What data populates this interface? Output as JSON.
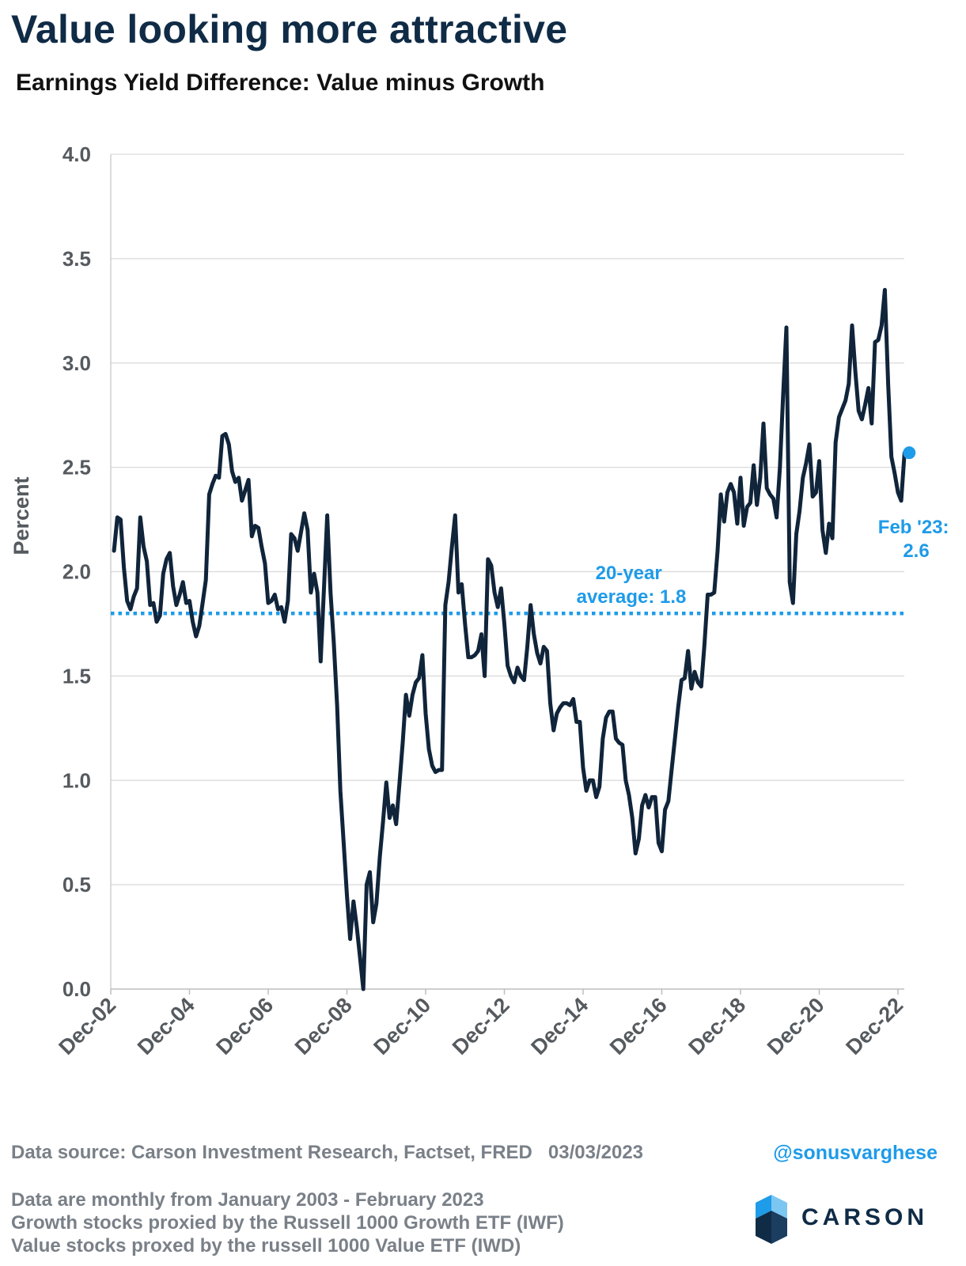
{
  "header": {
    "title": "Value looking more attractive",
    "subtitle": "Earnings Yield Difference: Value minus Growth"
  },
  "chart_data": {
    "type": "line",
    "ylabel": "Percent",
    "xlabel": "",
    "ylim": [
      0,
      4
    ],
    "yticks": [
      "0.0",
      "0.5",
      "1.0",
      "1.5",
      "2.0",
      "2.5",
      "3.0",
      "3.5",
      "4.0"
    ],
    "xticks": [
      "Dec-02",
      "Dec-04",
      "Dec-06",
      "Dec-08",
      "Dec-10",
      "Dec-12",
      "Dec-14",
      "Dec-16",
      "Dec-18",
      "Dec-20",
      "Dec-22"
    ],
    "grid": "horizontal",
    "series": [
      {
        "color": "#10243a",
        "x": [
          "2003-01",
          "2003-02",
          "2003-03",
          "2003-04",
          "2003-05",
          "2003-06",
          "2003-07",
          "2003-08",
          "2003-09",
          "2003-10",
          "2003-11",
          "2003-12",
          "2004-01",
          "2004-02",
          "2004-03",
          "2004-04",
          "2004-05",
          "2004-06",
          "2004-07",
          "2004-08",
          "2004-09",
          "2004-10",
          "2004-11",
          "2004-12",
          "2005-01",
          "2005-02",
          "2005-03",
          "2005-04",
          "2005-05",
          "2005-06",
          "2005-07",
          "2005-08",
          "2005-09",
          "2005-10",
          "2005-11",
          "2005-12",
          "2006-01",
          "2006-02",
          "2006-03",
          "2006-04",
          "2006-05",
          "2006-06",
          "2006-07",
          "2006-08",
          "2006-09",
          "2006-10",
          "2006-11",
          "2006-12",
          "2007-01",
          "2007-02",
          "2007-03",
          "2007-04",
          "2007-05",
          "2007-06",
          "2007-07",
          "2007-08",
          "2007-09",
          "2007-10",
          "2007-11",
          "2007-12",
          "2008-01",
          "2008-02",
          "2008-03",
          "2008-04",
          "2008-05",
          "2008-06",
          "2008-07",
          "2008-08",
          "2008-09",
          "2008-10",
          "2008-11",
          "2008-12",
          "2009-01",
          "2009-02",
          "2009-03",
          "2009-04",
          "2009-05",
          "2009-06",
          "2009-07",
          "2009-08",
          "2009-09",
          "2009-10",
          "2009-11",
          "2009-12",
          "2010-01",
          "2010-02",
          "2010-03",
          "2010-04",
          "2010-05",
          "2010-06",
          "2010-07",
          "2010-08",
          "2010-09",
          "2010-10",
          "2010-11",
          "2010-12",
          "2011-01",
          "2011-02",
          "2011-03",
          "2011-04",
          "2011-05",
          "2011-06",
          "2011-07",
          "2011-08",
          "2011-09",
          "2011-10",
          "2011-11",
          "2011-12",
          "2012-01",
          "2012-02",
          "2012-03",
          "2012-04",
          "2012-05",
          "2012-06",
          "2012-07",
          "2012-08",
          "2012-09",
          "2012-10",
          "2012-11",
          "2012-12",
          "2013-01",
          "2013-02",
          "2013-03",
          "2013-04",
          "2013-05",
          "2013-06",
          "2013-07",
          "2013-08",
          "2013-09",
          "2013-10",
          "2013-11",
          "2013-12",
          "2014-01",
          "2014-02",
          "2014-03",
          "2014-04",
          "2014-05",
          "2014-06",
          "2014-07",
          "2014-08",
          "2014-09",
          "2014-10",
          "2014-11",
          "2014-12",
          "2015-01",
          "2015-02",
          "2015-03",
          "2015-04",
          "2015-05",
          "2015-06",
          "2015-07",
          "2015-08",
          "2015-09",
          "2015-10",
          "2015-11",
          "2015-12",
          "2016-01",
          "2016-02",
          "2016-03",
          "2016-04",
          "2016-05",
          "2016-06",
          "2016-07",
          "2016-08",
          "2016-09",
          "2016-10",
          "2016-11",
          "2016-12",
          "2017-01",
          "2017-02",
          "2017-03",
          "2017-04",
          "2017-05",
          "2017-06",
          "2017-07",
          "2017-08",
          "2017-09",
          "2017-10",
          "2017-11",
          "2017-12",
          "2018-01",
          "2018-02",
          "2018-03",
          "2018-04",
          "2018-05",
          "2018-06",
          "2018-07",
          "2018-08",
          "2018-09",
          "2018-10",
          "2018-11",
          "2018-12",
          "2019-01",
          "2019-02",
          "2019-03",
          "2019-04",
          "2019-05",
          "2019-06",
          "2019-07",
          "2019-08",
          "2019-09",
          "2019-10",
          "2019-11",
          "2019-12",
          "2020-01",
          "2020-02",
          "2020-03",
          "2020-04",
          "2020-05",
          "2020-06",
          "2020-07",
          "2020-08",
          "2020-09",
          "2020-10",
          "2020-11",
          "2020-12",
          "2021-01",
          "2021-02",
          "2021-03",
          "2021-04",
          "2021-05",
          "2021-06",
          "2021-07",
          "2021-08",
          "2021-09",
          "2021-10",
          "2021-11",
          "2021-12",
          "2022-01",
          "2022-02",
          "2022-03",
          "2022-04",
          "2022-05",
          "2022-06",
          "2022-07",
          "2022-08",
          "2022-09",
          "2022-10",
          "2022-11",
          "2022-12",
          "2023-01",
          "2023-02"
        ],
        "values": [
          2.1,
          2.26,
          2.25,
          2.02,
          1.86,
          1.82,
          1.88,
          1.92,
          2.26,
          2.12,
          2.05,
          1.84,
          1.85,
          1.76,
          1.79,
          1.99,
          2.06,
          2.09,
          1.93,
          1.84,
          1.89,
          1.95,
          1.85,
          1.86,
          1.76,
          1.69,
          1.74,
          1.85,
          1.96,
          2.37,
          2.42,
          2.46,
          2.45,
          2.65,
          2.66,
          2.61,
          2.48,
          2.43,
          2.45,
          2.34,
          2.39,
          2.44,
          2.17,
          2.22,
          2.21,
          2.12,
          2.04,
          1.85,
          1.86,
          1.89,
          1.82,
          1.83,
          1.76,
          1.86,
          2.18,
          2.16,
          2.1,
          2.19,
          2.28,
          2.2,
          1.9,
          1.99,
          1.9,
          1.57,
          1.92,
          2.27,
          1.9,
          1.66,
          1.36,
          0.95,
          0.7,
          0.45,
          0.24,
          0.42,
          0.3,
          0.15,
          0.0,
          0.5,
          0.56,
          0.32,
          0.41,
          0.63,
          0.8,
          0.99,
          0.82,
          0.88,
          0.79,
          0.98,
          1.18,
          1.41,
          1.31,
          1.41,
          1.47,
          1.49,
          1.6,
          1.32,
          1.15,
          1.07,
          1.04,
          1.05,
          1.05,
          1.84,
          1.95,
          2.12,
          2.27,
          1.9,
          1.94,
          1.75,
          1.59,
          1.59,
          1.6,
          1.62,
          1.7,
          1.5,
          2.06,
          2.03,
          1.9,
          1.83,
          1.92,
          1.75,
          1.55,
          1.5,
          1.47,
          1.54,
          1.5,
          1.48,
          1.64,
          1.84,
          1.7,
          1.61,
          1.56,
          1.64,
          1.62,
          1.37,
          1.24,
          1.32,
          1.35,
          1.37,
          1.37,
          1.36,
          1.39,
          1.28,
          1.28,
          1.06,
          0.95,
          1.0,
          1.0,
          0.92,
          0.97,
          1.2,
          1.3,
          1.33,
          1.33,
          1.2,
          1.18,
          1.17,
          1.0,
          0.93,
          0.82,
          0.65,
          0.72,
          0.88,
          0.93,
          0.87,
          0.92,
          0.92,
          0.7,
          0.66,
          0.86,
          0.9,
          1.05,
          1.2,
          1.35,
          1.48,
          1.49,
          1.62,
          1.44,
          1.52,
          1.47,
          1.45,
          1.65,
          1.89,
          1.89,
          1.9,
          2.1,
          2.37,
          2.24,
          2.38,
          2.42,
          2.38,
          2.23,
          2.45,
          2.22,
          2.31,
          2.33,
          2.51,
          2.32,
          2.45,
          2.71,
          2.4,
          2.37,
          2.35,
          2.26,
          2.5,
          2.85,
          3.17,
          1.95,
          1.85,
          2.18,
          2.29,
          2.45,
          2.52,
          2.61,
          2.36,
          2.38,
          2.53,
          2.2,
          2.09,
          2.23,
          2.16,
          2.62,
          2.74,
          2.78,
          2.82,
          2.9,
          3.18,
          2.96,
          2.77,
          2.73,
          2.8,
          2.88,
          2.71,
          3.1,
          3.11,
          3.18,
          3.35,
          2.9,
          2.55,
          2.47,
          2.38,
          2.34,
          2.57
        ]
      }
    ],
    "reference_lines": [
      {
        "value": 1.8,
        "style": "dotted",
        "color": "#1e9be9",
        "label": "20-year average: 1.8"
      }
    ],
    "annotations": {
      "average": [
        "20-year",
        "average: 1.8"
      ],
      "latest": [
        "Feb '23:",
        "2.6"
      ],
      "latest_point": {
        "x": "2023-02",
        "y": 2.57,
        "color": "#1e9be9"
      }
    }
  },
  "footer": {
    "source": "Data source: Carson Investment Research, Factset, FRED",
    "date": "03/03/2023",
    "handle": "@sonusvarghese",
    "notes": [
      "Data are monthly from January 2003 - February 2023",
      "Growth stocks proxied by the Russell 1000 Growth ETF (IWF)",
      "Value stocks proxed by the russell 1000 Value ETF (IWD)"
    ],
    "logo_text": "CARSON"
  },
  "colors": {
    "title": "#0f2b46",
    "line": "#10243a",
    "accent": "#1e9be9",
    "muted": "#7a8088",
    "grid": "#d9d9d9"
  }
}
